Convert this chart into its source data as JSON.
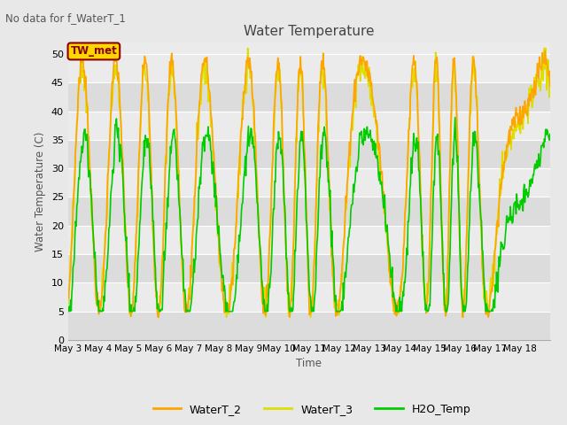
{
  "title": "Water Temperature",
  "subtitle": "No data for f_WaterT_1",
  "ylabel": "Water Temperature (C)",
  "xlabel": "Time",
  "ylim": [
    0,
    52
  ],
  "yticks": [
    0,
    5,
    10,
    15,
    20,
    25,
    30,
    35,
    40,
    45,
    50
  ],
  "x_labels": [
    "May 3",
    "May 4",
    "May 5",
    "May 6",
    "May 7",
    "May 8",
    "May 9",
    "May 10",
    "May 11",
    "May 12",
    "May 13",
    "May 14",
    "May 15",
    "May 16",
    "May 17",
    "May 18"
  ],
  "legend_labels": [
    "WaterT_2",
    "WaterT_3",
    "H2O_Temp"
  ],
  "legend_colors": [
    "#FFA500",
    "#DDDD00",
    "#00CC00"
  ],
  "tw_met_box_color": "#FFD700",
  "tw_met_text_color": "#8B0000",
  "tw_met_edge_color": "#8B0000",
  "background_color": "#E8E8E8",
  "plot_bg_color_light": "#EBEBEB",
  "plot_bg_color_dark": "#DCDCDC",
  "grid_color": "#FFFFFF",
  "line_width": 1.2
}
